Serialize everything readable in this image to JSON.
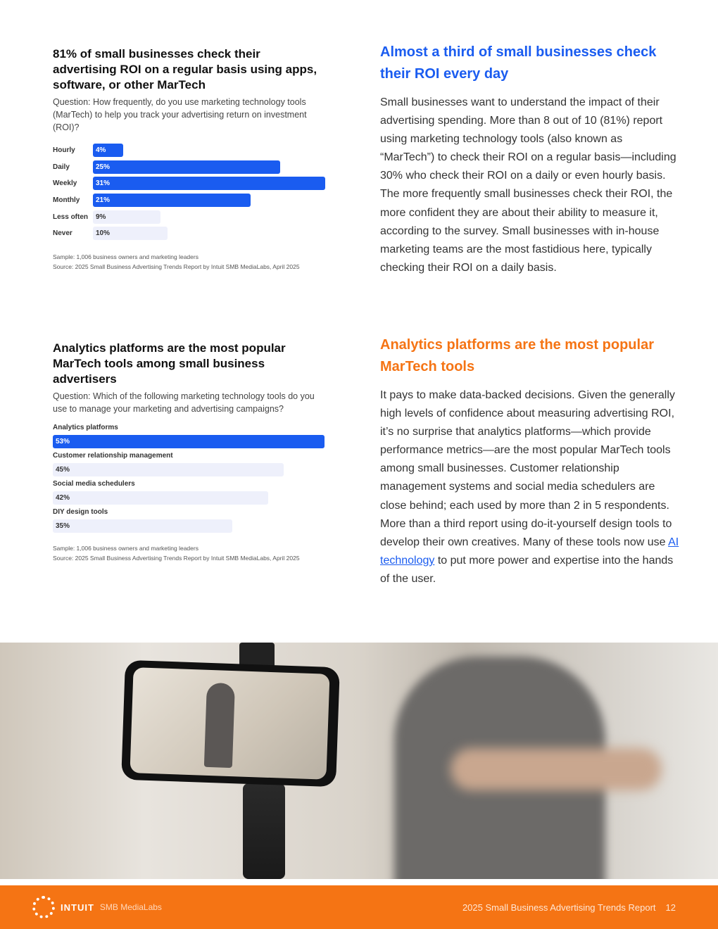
{
  "chart1": {
    "title": "81% of small businesses check their advertising ROI on a regular basis using apps, software, or other MarTech",
    "question": "Question: How frequently, do you use marketing technology tools (MarTech) to help you track your advertising return on investment (ROI)?",
    "type": "bar",
    "categories": [
      "Hourly",
      "Daily",
      "Weekly",
      "Monthly",
      "Less often",
      "Never"
    ],
    "values": [
      4,
      25,
      31,
      21,
      9,
      10
    ],
    "labels": [
      "4%",
      "25%",
      "31%",
      "21%",
      "9%",
      "10%"
    ],
    "highlight": [
      true,
      true,
      true,
      true,
      false,
      false
    ],
    "sample": "Sample: 1,006 business owners and marketing leaders",
    "source": "Source: 2025 Small Business Advertising Trends Report by Intuit SMB MediaLabs, April 2025"
  },
  "chart2": {
    "title": "Analytics platforms are the most popular MarTech tools among small business advertisers",
    "question": "Question: Which of the following marketing technology tools do you use to manage your marketing and advertising campaigns?",
    "type": "bar",
    "categories": [
      "Analytics platforms",
      "Customer relationship management",
      "Social media schedulers",
      "DIY design tools"
    ],
    "values": [
      53,
      45,
      42,
      35
    ],
    "labels": [
      "53%",
      "45%",
      "42%",
      "35%"
    ],
    "highlight": [
      true,
      false,
      false,
      false
    ],
    "sample": "Sample: 1,006 business owners and marketing leaders",
    "source": "Source: 2025 Small Business Advertising Trends Report by Intuit SMB MediaLabs, April 2025"
  },
  "section1": {
    "heading": "Almost a third of small businesses check their ROI every day",
    "body": "Small businesses want to understand the impact of their advertising spending. More than 8 out of 10 (81%) report using marketing technology tools (also known as “MarTech”) to check their ROI on a regular basis—including 30% who check their ROI on a daily or even hourly basis. The more frequently small businesses check their ROI, the more confident they are about their ability to measure it, according to the survey. Small businesses with in-house marketing teams are the most fastidious here, typically checking their ROI on a daily basis."
  },
  "section2": {
    "heading": "Analytics platforms are the most popular MarTech tools",
    "body_before": "It pays to make data-backed decisions. Given the generally high levels of confidence about measuring advertising ROI, it’s no surprise that analytics platforms—which provide performance metrics—are the most popular MarTech tools among small businesses. Customer relationship management systems and social media schedulers are close behind; each used by more than 2 in 5 respondents. More than a third report using do-it-yourself design tools to develop their own creatives. Many of these tools now use ",
    "link": "AI technology",
    "body_after": " to put more power and expertise into the hands of the user."
  },
  "footer": {
    "brand": "INTUIT",
    "brand_sub": "SMB MediaLabs",
    "report": "2025 Small Business Advertising Trends Report",
    "page": "12"
  },
  "colors": {
    "blue": "#1a5cf0",
    "light": "#eef0fb",
    "orange": "#f57414",
    "heading_blue": "#1a5cf0",
    "heading_orange": "#f57414"
  }
}
